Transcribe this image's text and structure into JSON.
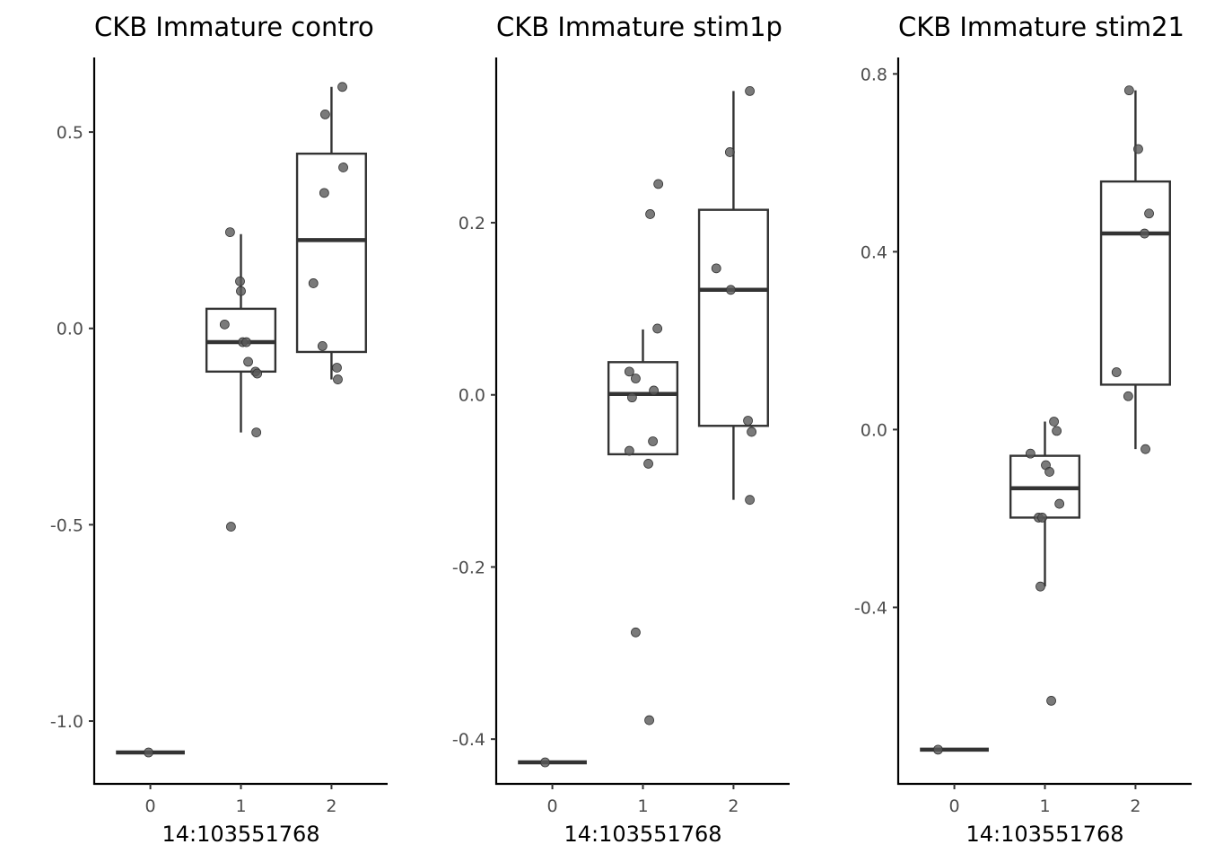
{
  "chart_data": [
    {
      "type": "box",
      "title": "CKB Immature contro",
      "xlabel": "14:103551768",
      "ylabel": "",
      "categories": [
        "0",
        "1",
        "2"
      ],
      "ylim": [
        -1.16,
        0.69
      ],
      "yticks": [
        -1.0,
        -0.5,
        0.0,
        0.5
      ],
      "ytick_labels": [
        "-1.0",
        "-0.5",
        "0.0",
        "0.5"
      ],
      "boxes": [
        {
          "category": "0",
          "q1": -1.08,
          "median": -1.08,
          "q3": -1.08,
          "whisker_low": -1.08,
          "whisker_high": -1.08
        },
        {
          "category": "1",
          "q1": -0.11,
          "median": -0.035,
          "q3": 0.05,
          "whisker_low": -0.265,
          "whisker_high": 0.24
        },
        {
          "category": "2",
          "q1": -0.06,
          "median": 0.225,
          "q3": 0.445,
          "whisker_low": -0.13,
          "whisker_high": 0.615
        }
      ],
      "points": [
        {
          "x": -0.02,
          "y": -1.08
        },
        {
          "x": 0.82,
          "y": 0.01
        },
        {
          "x": 0.88,
          "y": 0.245
        },
        {
          "x": 0.99,
          "y": 0.12
        },
        {
          "x": 1.0,
          "y": 0.095
        },
        {
          "x": 1.02,
          "y": -0.035
        },
        {
          "x": 1.06,
          "y": -0.035
        },
        {
          "x": 1.08,
          "y": -0.085
        },
        {
          "x": 1.16,
          "y": -0.11
        },
        {
          "x": 1.18,
          "y": -0.115
        },
        {
          "x": 1.17,
          "y": -0.265
        },
        {
          "x": 0.89,
          "y": -0.505
        },
        {
          "x": 2.12,
          "y": 0.615
        },
        {
          "x": 1.93,
          "y": 0.545
        },
        {
          "x": 2.13,
          "y": 0.41
        },
        {
          "x": 1.92,
          "y": 0.345
        },
        {
          "x": 1.8,
          "y": 0.115
        },
        {
          "x": 1.9,
          "y": -0.045
        },
        {
          "x": 2.06,
          "y": -0.1
        },
        {
          "x": 2.07,
          "y": -0.13
        }
      ]
    },
    {
      "type": "box",
      "title": "CKB Immature stim1p",
      "xlabel": "14:103551768",
      "ylabel": "",
      "categories": [
        "0",
        "1",
        "2"
      ],
      "ylim": [
        -0.452,
        0.392
      ],
      "yticks": [
        -0.4,
        -0.2,
        0.0,
        0.2
      ],
      "ytick_labels": [
        "-0.4",
        "-0.2",
        "0.0",
        "0.2"
      ],
      "boxes": [
        {
          "category": "0",
          "q1": -0.427,
          "median": -0.427,
          "q3": -0.427,
          "whisker_low": -0.427,
          "whisker_high": -0.427
        },
        {
          "category": "1",
          "q1": -0.069,
          "median": 0.001,
          "q3": 0.038,
          "whisker_low": -0.069,
          "whisker_high": 0.076
        },
        {
          "category": "2",
          "q1": -0.036,
          "median": 0.122,
          "q3": 0.215,
          "whisker_low": -0.122,
          "whisker_high": 0.353
        }
      ],
      "points": [
        {
          "x": -0.08,
          "y": -0.427
        },
        {
          "x": 1.17,
          "y": 0.245
        },
        {
          "x": 1.08,
          "y": 0.21
        },
        {
          "x": 1.16,
          "y": 0.077
        },
        {
          "x": 0.85,
          "y": 0.027
        },
        {
          "x": 0.92,
          "y": 0.019
        },
        {
          "x": 1.12,
          "y": 0.005
        },
        {
          "x": 0.88,
          "y": -0.003
        },
        {
          "x": 1.11,
          "y": -0.054
        },
        {
          "x": 0.85,
          "y": -0.065
        },
        {
          "x": 1.06,
          "y": -0.08
        },
        {
          "x": 0.92,
          "y": -0.276
        },
        {
          "x": 1.07,
          "y": -0.378
        },
        {
          "x": 2.18,
          "y": 0.353
        },
        {
          "x": 1.96,
          "y": 0.282
        },
        {
          "x": 1.81,
          "y": 0.147
        },
        {
          "x": 1.97,
          "y": 0.122
        },
        {
          "x": 2.16,
          "y": -0.03
        },
        {
          "x": 2.2,
          "y": -0.043
        },
        {
          "x": 2.18,
          "y": -0.122
        }
      ]
    },
    {
      "type": "box",
      "title": "CKB Immature stim21",
      "xlabel": "14:103551768",
      "ylabel": "",
      "categories": [
        "0",
        "1",
        "2"
      ],
      "ylim": [
        -0.797,
        0.837
      ],
      "yticks": [
        -0.4,
        0.0,
        0.4,
        0.8
      ],
      "ytick_labels": [
        "-0.4",
        "0.0",
        "0.4",
        "0.8"
      ],
      "boxes": [
        {
          "category": "0",
          "q1": -0.72,
          "median": -0.72,
          "q3": -0.72,
          "whisker_low": -0.72,
          "whisker_high": -0.72
        },
        {
          "category": "1",
          "q1": -0.198,
          "median": -0.132,
          "q3": -0.059,
          "whisker_low": -0.353,
          "whisker_high": 0.018
        },
        {
          "category": "2",
          "q1": 0.101,
          "median": 0.441,
          "q3": 0.558,
          "whisker_low": -0.044,
          "whisker_high": 0.763
        }
      ],
      "points": [
        {
          "x": -0.18,
          "y": -0.72
        },
        {
          "x": 1.1,
          "y": 0.018
        },
        {
          "x": 1.13,
          "y": -0.003
        },
        {
          "x": 0.84,
          "y": -0.054
        },
        {
          "x": 1.01,
          "y": -0.08
        },
        {
          "x": 1.05,
          "y": -0.095
        },
        {
          "x": 1.16,
          "y": -0.167
        },
        {
          "x": 0.93,
          "y": -0.198
        },
        {
          "x": 0.97,
          "y": -0.198
        },
        {
          "x": 0.95,
          "y": -0.353
        },
        {
          "x": 1.07,
          "y": -0.61
        },
        {
          "x": 1.93,
          "y": 0.763
        },
        {
          "x": 2.03,
          "y": 0.631
        },
        {
          "x": 2.15,
          "y": 0.486
        },
        {
          "x": 2.1,
          "y": 0.441
        },
        {
          "x": 1.79,
          "y": 0.129
        },
        {
          "x": 1.92,
          "y": 0.075
        },
        {
          "x": 2.11,
          "y": -0.044
        }
      ]
    }
  ]
}
